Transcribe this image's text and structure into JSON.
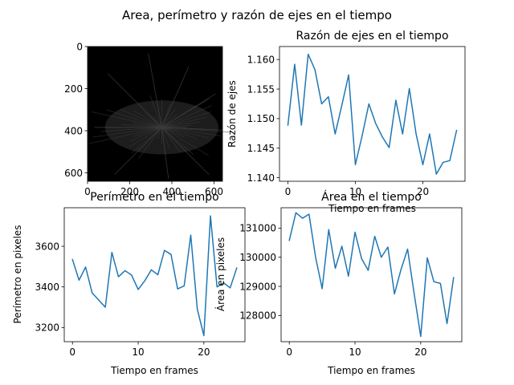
{
  "suptitle": "Area, perímetro y razón de ejes en el tiempo",
  "colors": {
    "series": "#1f77b4",
    "image_bg": "#000000"
  },
  "chart_data": [
    {
      "id": "image",
      "type": "heatmap",
      "title": "",
      "xlabel": "",
      "ylabel": "",
      "xlim": [
        0,
        640
      ],
      "ylim": [
        640,
        0
      ],
      "xticks": [
        0,
        200,
        400,
        600
      ],
      "yticks": [
        0,
        200,
        400,
        600
      ],
      "description": "grayscale microscopy image of a cell on black background"
    },
    {
      "id": "ratio",
      "type": "line",
      "title": "Razón de ejes en el tiempo",
      "xlabel": "Tiempo en frames",
      "ylabel": "Razón de ejes",
      "xlim": [
        -1.25,
        26.25
      ],
      "ylim": [
        1.1394,
        1.1622
      ],
      "xticks": [
        0,
        10,
        20
      ],
      "yticks": [
        1.14,
        1.145,
        1.15,
        1.155,
        1.16
      ],
      "ytick_labels": [
        "1.140",
        "1.145",
        "1.150",
        "1.155",
        "1.160"
      ],
      "x": [
        0,
        1,
        2,
        3,
        4,
        5,
        6,
        7,
        8,
        9,
        10,
        11,
        12,
        13,
        14,
        15,
        16,
        17,
        18,
        19,
        20,
        21,
        22,
        23,
        24,
        25
      ],
      "values": [
        1.1489,
        1.1592,
        1.1489,
        1.1609,
        1.1583,
        1.1525,
        1.1537,
        1.1474,
        1.1523,
        1.1574,
        1.1422,
        1.1471,
        1.1525,
        1.1492,
        1.1469,
        1.1451,
        1.1531,
        1.1474,
        1.1551,
        1.1474,
        1.1422,
        1.1474,
        1.1406,
        1.1426,
        1.1429,
        1.148
      ]
    },
    {
      "id": "perimeter",
      "type": "line",
      "title": "Perímetro en el tiempo",
      "xlabel": "Tiempo en frames",
      "ylabel": "Perímetro en pixeles",
      "xlim": [
        -1.25,
        26.25
      ],
      "ylim": [
        3130,
        3790
      ],
      "xticks": [
        0,
        10,
        20
      ],
      "yticks": [
        3200,
        3400,
        3600
      ],
      "x": [
        0,
        1,
        2,
        3,
        4,
        5,
        6,
        7,
        8,
        9,
        10,
        11,
        12,
        13,
        14,
        15,
        16,
        17,
        18,
        19,
        20,
        21,
        22,
        23,
        24,
        25
      ],
      "values": [
        3535,
        3433,
        3498,
        3370,
        3335,
        3300,
        3570,
        3450,
        3480,
        3458,
        3387,
        3430,
        3484,
        3460,
        3580,
        3560,
        3390,
        3405,
        3655,
        3290,
        3160,
        3750,
        3400,
        3420,
        3395,
        3493
      ]
    },
    {
      "id": "area",
      "type": "line",
      "title": "Área en el tiempo",
      "xlabel": "Tiempo en frames",
      "ylabel": "Área en pixeles",
      "xlim": [
        -1.25,
        26.25
      ],
      "ylim": [
        127100,
        131700
      ],
      "xticks": [
        0,
        10,
        20
      ],
      "yticks": [
        128000,
        129000,
        130000,
        131000
      ],
      "x": [
        0,
        1,
        2,
        3,
        4,
        5,
        6,
        7,
        8,
        9,
        10,
        11,
        12,
        13,
        14,
        15,
        16,
        17,
        18,
        19,
        20,
        21,
        22,
        23,
        24,
        25
      ],
      "values": [
        130580,
        131530,
        131340,
        131480,
        130000,
        128920,
        130950,
        129620,
        130380,
        129350,
        130860,
        129950,
        129550,
        130720,
        130000,
        130350,
        128740,
        129580,
        130280,
        128750,
        127280,
        129980,
        129160,
        129100,
        127720,
        129300
      ]
    }
  ]
}
